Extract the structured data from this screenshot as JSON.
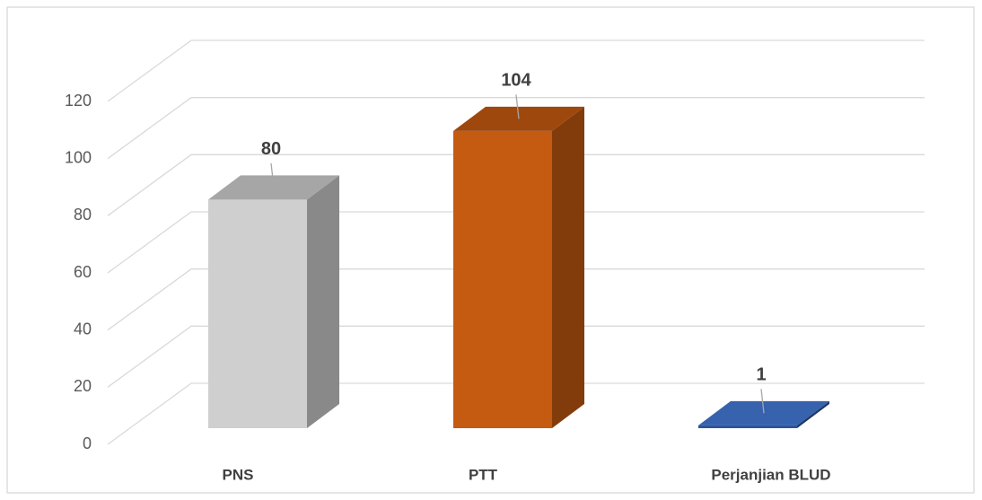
{
  "chart_data": {
    "type": "bar3d",
    "categories": [
      "PNS",
      "PTT",
      "Perjanjian BLUD"
    ],
    "values": [
      80,
      104,
      1
    ],
    "colors": [
      "#d0cfd0",
      "#c55a11",
      "#2f5597"
    ],
    "ylim": [
      0,
      120
    ],
    "yticks": [
      0,
      20,
      40,
      60,
      80,
      100,
      120
    ],
    "grid": true
  }
}
